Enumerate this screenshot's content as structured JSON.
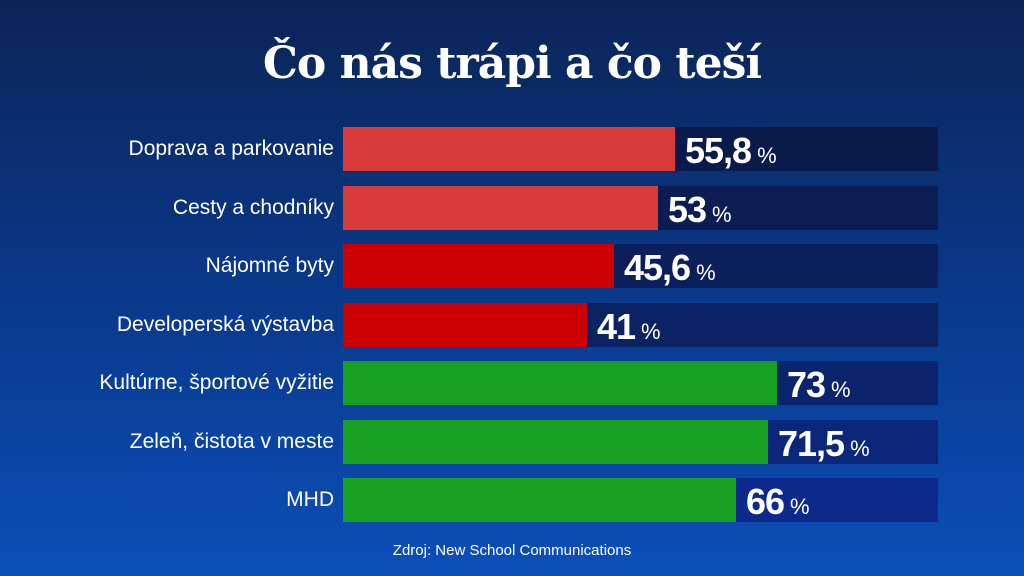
{
  "title": "Čo nás trápi a čo teší",
  "source": "Zdroj: New School Communications",
  "colors": {
    "bad_light": "#d93a3a",
    "bad_dark": "#cc0000",
    "good": "#17a022",
    "track_top": "#0a1a4a",
    "track_bottom": "#0d2a8a"
  },
  "chart_data": {
    "type": "bar",
    "orientation": "horizontal",
    "title": "Čo nás trápi a čo teší",
    "unit": "%",
    "xlim": [
      0,
      100
    ],
    "categories": [
      "Doprava a parkovanie",
      "Cesty a chodníky",
      "Nájomné byty",
      "Developerská výstavba",
      "Kultúrne, športové vyžitie",
      "Zeleň, čistota v meste",
      "MHD"
    ],
    "values": [
      55.8,
      53,
      45.6,
      41,
      73,
      71.5,
      66
    ],
    "value_labels": [
      "55,8",
      "53",
      "45,6",
      "41",
      "73",
      "71,5",
      "66"
    ],
    "bar_colors": [
      "#d93a3a",
      "#d93a3a",
      "#cc0000",
      "#cc0000",
      "#17a022",
      "#17a022",
      "#17a022"
    ],
    "track_colors": [
      "#0a1a4a",
      "#0b1d52",
      "#0b205a",
      "#0b2363",
      "#0c246e",
      "#0c277a",
      "#0d2a8a"
    ]
  }
}
